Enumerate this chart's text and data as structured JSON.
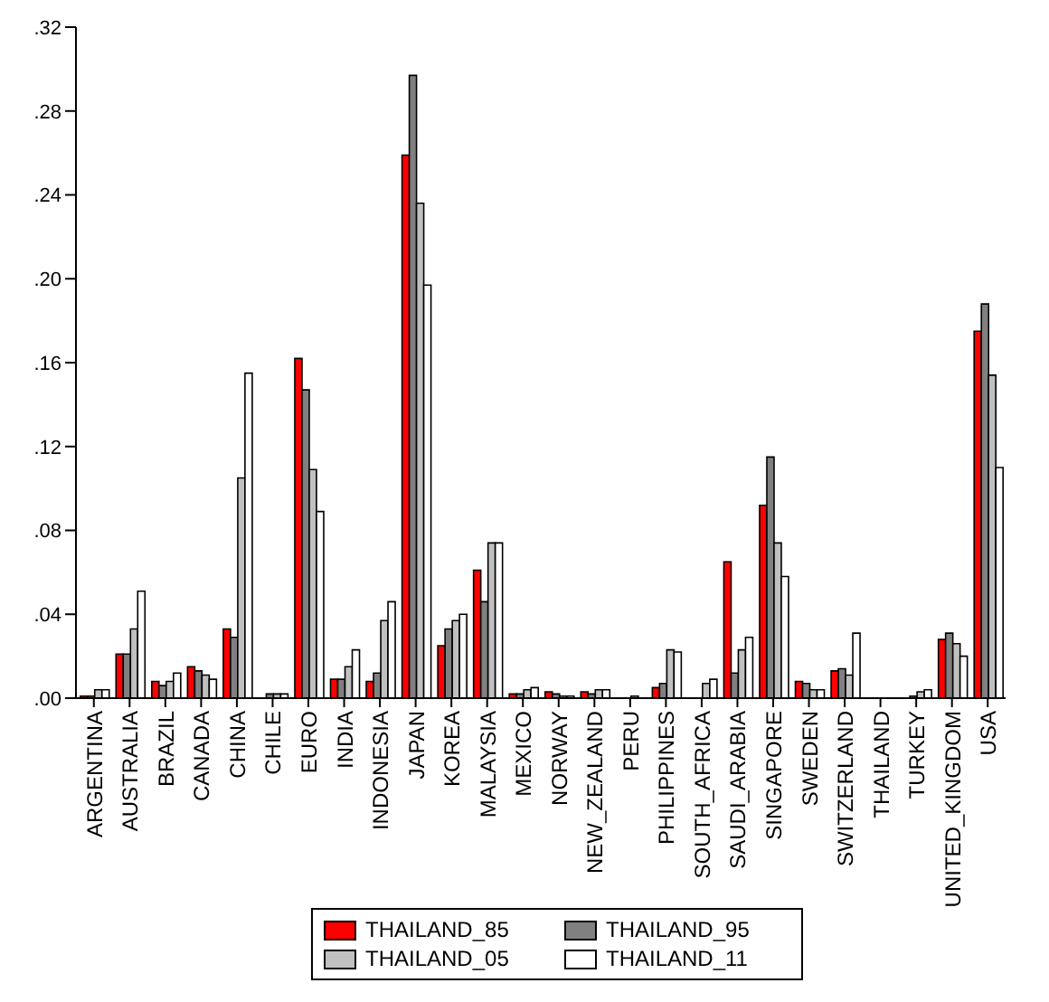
{
  "chart_data": {
    "type": "bar",
    "categories": [
      "ARGENTINA",
      "AUSTRALIA",
      "BRAZIL",
      "CANADA",
      "CHINA",
      "CHILE",
      "EURO",
      "INDIA",
      "INDONESIA",
      "JAPAN",
      "KOREA",
      "MALAYSIA",
      "MEXICO",
      "NORWAY",
      "NEW_ZEALAND",
      "PERU",
      "PHILIPPINES",
      "SOUTH_AFRICA",
      "SAUDI_ARABIA",
      "SINGAPORE",
      "SWEDEN",
      "SWITZERLAND",
      "THAILAND",
      "TURKEY",
      "UNITED_KINGDOM",
      "USA"
    ],
    "series": [
      {
        "name": "THAILAND_85",
        "color": "#ff0000",
        "values": [
          0.001,
          0.021,
          0.008,
          0.015,
          0.033,
          null,
          0.162,
          0.009,
          0.008,
          0.259,
          0.025,
          0.061,
          0.002,
          0.003,
          0.003,
          0,
          0.005,
          0,
          0.065,
          0.092,
          0.008,
          0.013,
          0,
          0,
          0.028,
          0.175
        ]
      },
      {
        "name": "THAILAND_95",
        "color": "#808080",
        "values": [
          0.001,
          0.021,
          0.006,
          0.013,
          0.029,
          0.002,
          0.147,
          0.009,
          0.012,
          0.297,
          0.033,
          0.046,
          0.002,
          0.002,
          0.002,
          0,
          0.007,
          0,
          0.012,
          0.115,
          0.007,
          0.014,
          0,
          0.001,
          0.031,
          0.188
        ]
      },
      {
        "name": "THAILAND_05",
        "color": "#c0c0c0",
        "values": [
          0.004,
          0.033,
          0.008,
          0.011,
          0.105,
          0.002,
          0.109,
          0.015,
          0.037,
          0.236,
          0.037,
          0.074,
          0.004,
          0.001,
          0.004,
          0.001,
          0.023,
          0.007,
          0.023,
          0.074,
          0.004,
          0.011,
          0,
          0.003,
          0.026,
          0.154
        ]
      },
      {
        "name": "THAILAND_11",
        "color": "#ffffff",
        "values": [
          0.004,
          0.051,
          0.012,
          0.009,
          0.155,
          0.002,
          0.089,
          0.023,
          0.046,
          0.197,
          0.04,
          0.074,
          0.005,
          0.001,
          0.004,
          0,
          0.022,
          0.009,
          0.029,
          0.058,
          0.004,
          0.031,
          0,
          0.004,
          0.02,
          0.11
        ]
      }
    ],
    "ylim": [
      0,
      0.32
    ],
    "yticks": [
      {
        "value": 0,
        "label": ".00"
      },
      {
        "value": 0.04,
        "label": ".04"
      },
      {
        "value": 0.08,
        "label": ".08"
      },
      {
        "value": 0.12,
        "label": ".12"
      },
      {
        "value": 0.16,
        "label": ".16"
      },
      {
        "value": 0.2,
        "label": ".20"
      },
      {
        "value": 0.24,
        "label": ".24"
      },
      {
        "value": 0.28,
        "label": ".28"
      },
      {
        "value": 0.32,
        "label": ".32"
      }
    ],
    "legend": "bottom"
  }
}
